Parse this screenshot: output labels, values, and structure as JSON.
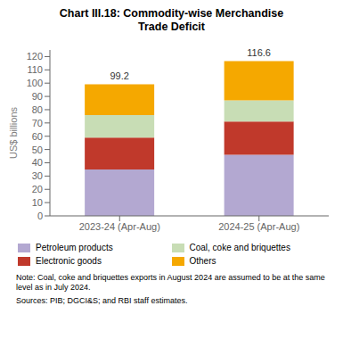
{
  "chart_data": {
    "type": "bar",
    "stacked": true,
    "title": "Chart III.18: Commodity-wise Merchandise\nTrade Deficit",
    "categories": [
      "2023-24 (Apr-Aug)",
      "2024-25 (Apr-Aug)"
    ],
    "series": [
      {
        "name": "Petroleum products",
        "color": "#b3a8d1",
        "values": [
          35.0,
          46.0
        ]
      },
      {
        "name": "Electronic goods",
        "color": "#c0392b",
        "values": [
          24.0,
          25.0
        ]
      },
      {
        "name": "Coal, coke and briquettes",
        "color": "#c8ddb5",
        "values": [
          17.0,
          16.0
        ]
      },
      {
        "name": "Others",
        "color": "#f5a800",
        "values": [
          23.2,
          29.6
        ]
      }
    ],
    "totals": [
      99.2,
      116.6
    ],
    "ylabel": "US$ billions",
    "ylim": [
      0,
      125
    ],
    "yticks": [
      0,
      10,
      20,
      30,
      40,
      50,
      60,
      70,
      80,
      90,
      100,
      110,
      120
    ],
    "grid": false,
    "legend": "bottom",
    "annotations": [
      "Note: Coal, coke and briquettes exports in August 2024 are assumed to be at the same level as in July 2024.",
      "Sources: PIB; DGCI&S; and RBI staff estimates."
    ]
  }
}
